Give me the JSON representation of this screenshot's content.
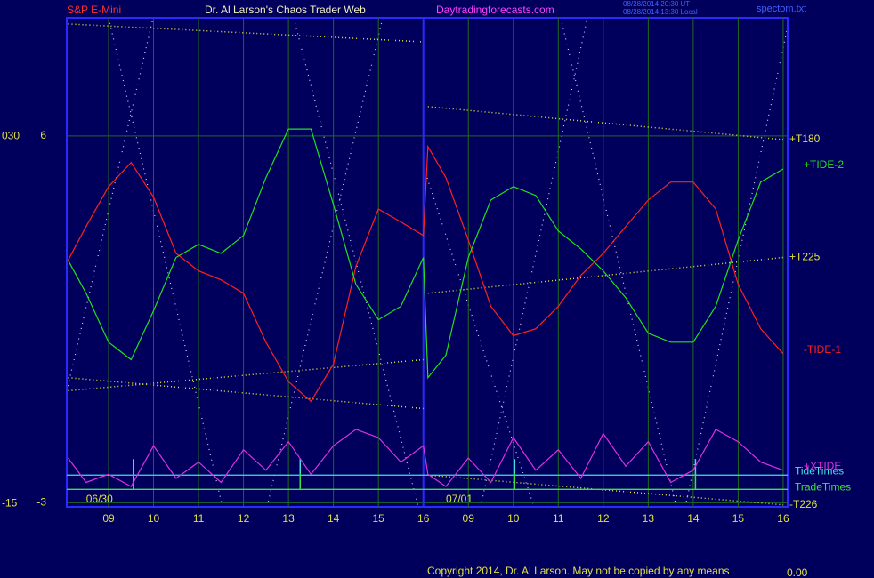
{
  "header": {
    "symbol": "S&P E-Mini",
    "title": "Dr. Al Larson's Chaos Trader Web",
    "site": "Daytradingforecasts.com",
    "stamp_ut": "08/28/2014 20:30 UT",
    "stamp_local": "08/28/2014 13:30 Local",
    "file": "spectom.txt"
  },
  "footer": {
    "copyright": "Copyright 2014, Dr. Al Larson. May not be copied by any means",
    "value": "0.00"
  },
  "chart_data": {
    "type": "line",
    "x": [
      8.1,
      8.5,
      9,
      9.5,
      10,
      10.5,
      11,
      11.5,
      12,
      12.5,
      13,
      13.5,
      14,
      14.5,
      15,
      15.5,
      16,
      16.1,
      16.5,
      17,
      17.5,
      18,
      18.5,
      19,
      19.5,
      20,
      20.5,
      21,
      21.5,
      22,
      22.5,
      23,
      23.5,
      24
    ],
    "xlim": [
      8.07,
      24.1
    ],
    "xticks": [
      {
        "value": 9,
        "label": "09"
      },
      10,
      11,
      12,
      13,
      14,
      15,
      16,
      {
        "value": 17,
        "label": "09"
      },
      {
        "value": 18,
        "label": "10"
      },
      {
        "value": 19,
        "label": "11"
      },
      {
        "value": 20,
        "label": "12"
      },
      {
        "value": 21,
        "label": "13"
      },
      {
        "value": 22,
        "label": "14"
      },
      {
        "value": 23,
        "label": "15"
      },
      {
        "value": 24,
        "label": "16"
      }
    ],
    "day_divider": 16,
    "dates": [
      {
        "x": 8.5,
        "label": "06/30"
      },
      {
        "x": 16.5,
        "label": "07/01"
      }
    ],
    "ylim": [
      -3.1,
      8.9
    ],
    "yticks": [
      -3,
      6
    ],
    "y2lim": [
      -15.4,
      44.5
    ],
    "y2ticks": [
      -15,
      {
        "value": 30,
        "label": "030"
      }
    ],
    "grid": true,
    "series": [
      {
        "name": "-TIDE-1",
        "color": "#ff2020",
        "values": [
          2.95,
          3.78,
          4.76,
          5.35,
          4.5,
          3.12,
          2.69,
          2.47,
          2.14,
          0.94,
          -0.03,
          -0.51,
          0.4,
          2.8,
          4.21,
          3.89,
          3.56,
          5.74,
          4.98,
          3.45,
          1.82,
          1.1,
          1.27,
          1.82,
          2.58,
          3.12,
          3.78,
          4.43,
          4.87,
          4.87,
          4.21,
          2.36,
          1.27,
          0.66
        ]
      },
      {
        "name": "+TIDE-2",
        "color": "#20e020",
        "values": [
          2.95,
          2.14,
          0.94,
          0.51,
          1.71,
          3.02,
          3.34,
          3.12,
          3.56,
          4.98,
          6.17,
          6.17,
          4.32,
          2.36,
          1.49,
          1.82,
          3.02,
          0.07,
          0.62,
          3.02,
          4.43,
          4.76,
          4.54,
          3.67,
          3.23,
          2.69,
          2.03,
          1.16,
          0.94,
          0.94,
          1.82,
          3.45,
          4.87,
          5.19
        ]
      },
      {
        "name": "+XTIDE",
        "color": "#e030e0",
        "values": [
          -1.9,
          -2.5,
          -2.3,
          -2.6,
          -1.6,
          -2.4,
          -2.0,
          -2.5,
          -1.7,
          -2.2,
          -1.5,
          -2.3,
          -1.6,
          -1.2,
          -1.4,
          -2.0,
          -1.6,
          -2.3,
          -2.6,
          -1.9,
          -2.5,
          -1.4,
          -2.2,
          -1.7,
          -2.4,
          -1.3,
          -2.1,
          -1.5,
          -2.5,
          -2.2,
          -1.2,
          -1.5,
          -2.0,
          -2.2
        ]
      }
    ],
    "trend_lines": [
      {
        "x": [
          8.1,
          16
        ],
        "values": [
          8.75,
          8.31
        ],
        "color": "#e0e040"
      },
      {
        "name": "+T180",
        "x": [
          16.1,
          24
        ],
        "values": [
          6.72,
          5.91
        ],
        "color": "#e0e040"
      },
      {
        "x": [
          8.1,
          16
        ],
        "values": [
          -0.25,
          0.51
        ],
        "color": "#e0e040"
      },
      {
        "name": "+T225",
        "x": [
          16.1,
          24
        ],
        "values": [
          2.14,
          3.02
        ],
        "color": "#e0e040"
      },
      {
        "x": [
          8.1,
          16
        ],
        "values": [
          0.07,
          -0.69
        ],
        "color": "#e0e040"
      },
      {
        "name": "-T226",
        "x": [
          16.1,
          24
        ],
        "values": [
          -2.32,
          -3.05
        ],
        "color": "#e0e040"
      }
    ],
    "levels": [
      {
        "name": "TideTimes",
        "value": -2.32,
        "color": "#40e0e0",
        "times": [
          9.55,
          13.26,
          18.03,
          22.05
        ]
      },
      {
        "name": "TradeTimes",
        "value": -2.67,
        "color": "#40e040",
        "times": [
          9.55,
          13.26,
          18.03,
          22.05
        ]
      }
    ]
  }
}
